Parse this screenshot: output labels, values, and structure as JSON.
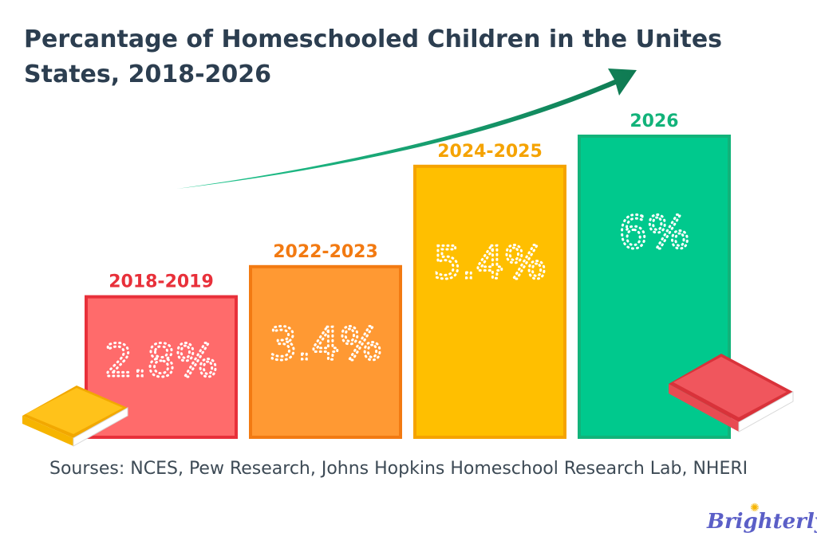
{
  "title": "Percantage of Homeschooled Children in the Unites States, 2018-2026",
  "source": "Sourses: NCES, Pew Research, Johns Hopkins Homeschool Research Lab, NHERI",
  "brand": "Brighterly",
  "colors": {
    "title": "#2c3e50",
    "trend_arrow": "#1a8a5e"
  },
  "chart_data": {
    "type": "bar",
    "title": "Percantage of Homeschooled Children in the Unites States, 2018-2026",
    "categories": [
      "2018-2019",
      "2022-2023",
      "2024-2025",
      "2026"
    ],
    "values": [
      2.8,
      3.4,
      5.4,
      6
    ],
    "value_labels": [
      "2.8%",
      "3.4%",
      "5.4%",
      "6%"
    ],
    "unit": "%",
    "colors": [
      "#ff6b6b",
      "#ff9933",
      "#ffbf00",
      "#00c98d"
    ],
    "label_colors": [
      "#e8303a",
      "#f27a12",
      "#f5a300",
      "#12b37a"
    ],
    "border_colors": [
      "#e8303a",
      "#f27a12",
      "#f5a300",
      "#12b37a"
    ],
    "ylim": [
      0,
      6.6
    ],
    "grid": false,
    "annotations": [
      "upward trend arrow"
    ]
  }
}
